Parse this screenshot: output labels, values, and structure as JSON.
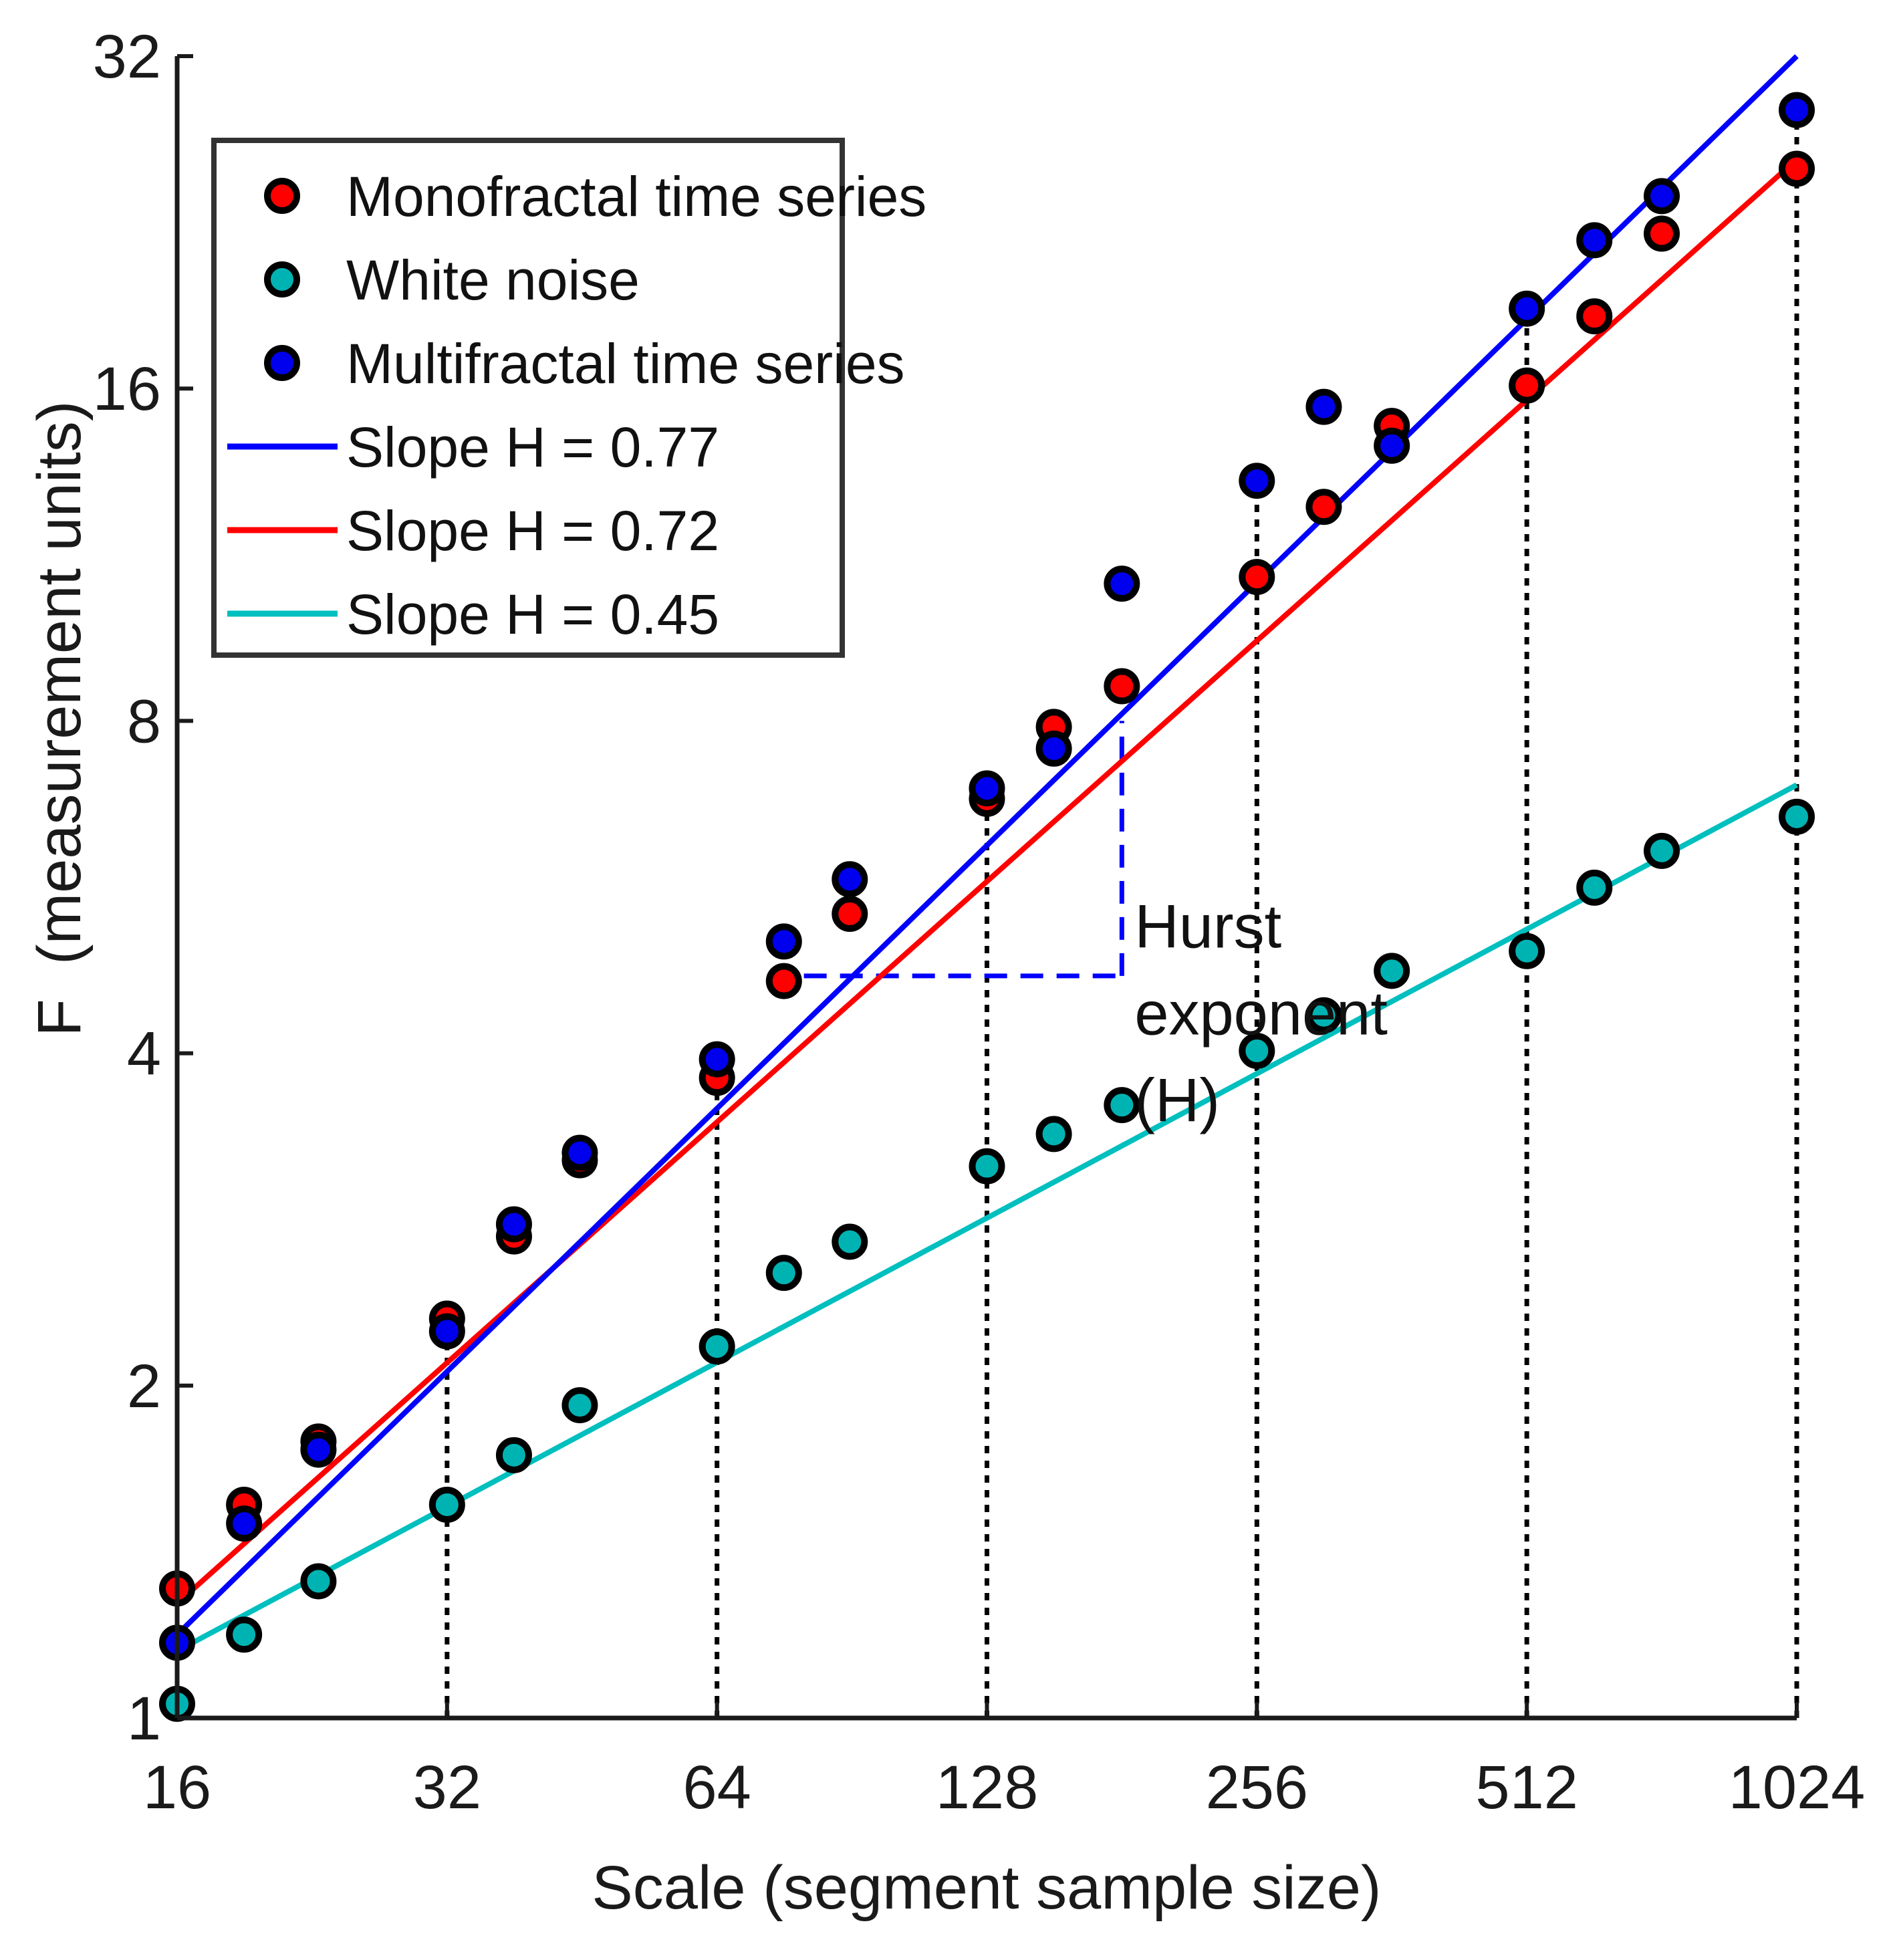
{
  "chart_data": {
    "type": "scatter",
    "title": "",
    "xlabel": "Scale (segment sample size)",
    "ylabel": "F  (measurement units)",
    "xscale": "log2",
    "yscale": "log2",
    "xlim": [
      16,
      1024
    ],
    "ylim": [
      1,
      32
    ],
    "xticks": [
      16,
      32,
      64,
      128,
      256,
      512,
      1024
    ],
    "xtick_labels": [
      "16",
      "32",
      "64",
      "128",
      "256",
      "512",
      "1024"
    ],
    "yticks": [
      1,
      2,
      4,
      8,
      16,
      32
    ],
    "ytick_labels": [
      "1",
      "2",
      "4",
      "8",
      "16",
      "32"
    ],
    "grid": false,
    "legend_position": "top-left",
    "x": [
      16,
      19,
      23,
      32,
      38,
      45,
      64,
      76,
      90,
      128,
      152,
      181,
      256,
      304,
      362,
      512,
      609,
      724,
      1024
    ],
    "series": [
      {
        "name": "Monofractal time series",
        "kind": "points",
        "color": "#ff0000",
        "values": [
          1.31,
          1.56,
          1.78,
          2.3,
          2.73,
          3.2,
          3.8,
          4.65,
          5.35,
          6.8,
          7.9,
          8.6,
          10.8,
          12.5,
          14.8,
          16.1,
          18.6,
          22.1,
          25.3
        ]
      },
      {
        "name": "White noise",
        "kind": "points",
        "color": "#00b3b3",
        "values": [
          1.03,
          1.19,
          1.33,
          1.56,
          1.73,
          1.92,
          2.17,
          2.53,
          2.7,
          3.16,
          3.38,
          3.59,
          4.02,
          4.33,
          4.75,
          4.95,
          5.65,
          6.1,
          6.55
        ]
      },
      {
        "name": "Multifractal time series",
        "kind": "points",
        "color": "#0000ee",
        "values": [
          1.17,
          1.5,
          1.75,
          2.24,
          2.8,
          3.25,
          3.95,
          5.05,
          5.75,
          6.95,
          7.55,
          10.65,
          13.2,
          15.4,
          14.2,
          18.9,
          21.8,
          23.9,
          28.6
        ]
      },
      {
        "name": "Slope H = 0.77",
        "kind": "line",
        "color": "#0000ff",
        "H": 0.77,
        "x": [
          16,
          1024
        ],
        "values": [
          1.19,
          32.0
        ]
      },
      {
        "name": "Slope H = 0.72",
        "kind": "line",
        "color": "#ff0000",
        "H": 0.72,
        "x": [
          16,
          1024
        ],
        "values": [
          1.27,
          25.8
        ]
      },
      {
        "name": "Slope H = 0.45",
        "kind": "line",
        "color": "#00bfbf",
        "H": 0.45,
        "x": [
          16,
          1024
        ],
        "values": [
          1.15,
          7.0
        ]
      }
    ],
    "reference_lines": {
      "x": [
        32,
        64,
        128,
        256,
        512,
        1024
      ],
      "style": "dotted",
      "color": "#000000"
    },
    "slope_triangle": {
      "color": "#0000ff",
      "style": "dashed",
      "x_start": 80,
      "x_end": 181,
      "y_low": 4.7,
      "y_high": 8.0
    },
    "annotation": {
      "lines": [
        "Hurst",
        "exponent",
        "(H)"
      ],
      "x": 187,
      "y": 5.2
    }
  }
}
